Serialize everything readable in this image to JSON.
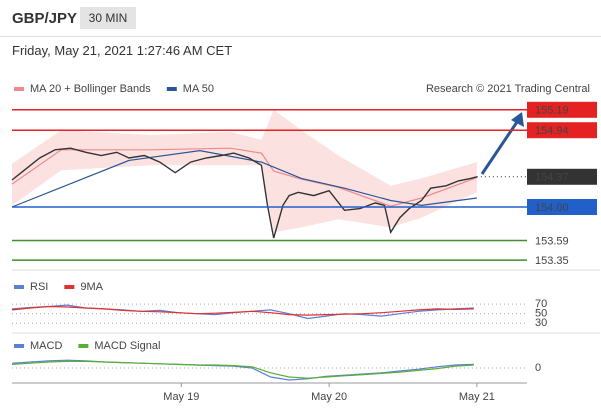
{
  "header": {
    "symbol": "GBP/JPY",
    "interval": "30 MIN",
    "timestamp": "Friday, May 21, 2021 1:27:46 AM CET"
  },
  "chart_data": [
    {
      "type": "line",
      "source": "Research © 2021 Trading Central",
      "xlim": [
        0,
        165
      ],
      "ylim": [
        153.29,
        155.31
      ],
      "x": [
        0,
        4,
        9,
        14,
        19,
        24,
        29,
        34,
        38,
        43,
        48,
        53,
        58,
        63,
        68,
        72,
        77,
        81,
        83,
        85,
        88,
        90,
        93,
        98,
        103,
        108,
        113,
        118,
        121,
        123,
        126,
        129,
        133,
        136,
        141,
        145,
        149,
        151
      ],
      "values": [
        154.33,
        154.45,
        154.6,
        154.7,
        154.72,
        154.67,
        154.63,
        154.67,
        154.6,
        154.63,
        154.55,
        154.42,
        154.55,
        154.6,
        154.63,
        154.66,
        154.6,
        154.51,
        154.02,
        153.62,
        154.02,
        154.14,
        154.18,
        154.14,
        154.2,
        153.96,
        153.98,
        154.05,
        154.02,
        153.69,
        153.87,
        153.98,
        154.08,
        154.23,
        154.26,
        154.32,
        154.35,
        154.37
      ],
      "color": "#333333",
      "series": [
        {
          "name": "MA 20 + Bollinger Bands",
          "color": "#f08a8a",
          "band_color": "#fbd9d9",
          "x": [
            0,
            16,
            45,
            71,
            81,
            85,
            94,
            106,
            123,
            133,
            151
          ],
          "values": [
            154.28,
            154.7,
            154.7,
            154.72,
            154.66,
            154.44,
            154.34,
            154.24,
            154.01,
            154.11,
            154.36
          ],
          "upper": [
            154.53,
            154.94,
            154.88,
            154.92,
            154.82,
            155.19,
            154.94,
            154.63,
            154.26,
            154.35,
            154.55
          ],
          "lower": [
            154.02,
            154.45,
            154.51,
            154.51,
            154.51,
            153.69,
            153.75,
            153.85,
            153.75,
            153.87,
            154.18
          ]
        },
        {
          "name": "MA 50",
          "color": "#2a5599",
          "x": [
            0,
            38,
            61,
            81,
            94,
            108,
            123,
            133,
            151
          ],
          "values": [
            154.0,
            154.57,
            154.69,
            154.55,
            154.35,
            154.23,
            154.08,
            154.02,
            154.11
          ]
        }
      ],
      "levels": [
        {
          "value": 155.19,
          "color": "#e52222",
          "box": true,
          "line": "solid"
        },
        {
          "value": 154.94,
          "color": "#e52222",
          "box": true,
          "line": "solid"
        },
        {
          "value": 154.37,
          "color": "#333333",
          "box": true,
          "line": "dotted"
        },
        {
          "value": 154,
          "label": "154.00",
          "color": "#2060c8",
          "box": true,
          "line": "solid"
        },
        {
          "value": 153.59,
          "color": "#3d8f2a",
          "box": false,
          "line": "solid"
        },
        {
          "value": 153.35,
          "color": "#3d8f2a",
          "box": false,
          "line": "solid"
        }
      ]
    },
    {
      "type": "line",
      "xlim": [
        0,
        165
      ],
      "ylim": [
        20,
        85
      ],
      "yticks": [
        30,
        50,
        70
      ],
      "series": [
        {
          "name": "RSI",
          "color": "#5b7fd6",
          "x": [
            0,
            6,
            12,
            18,
            24,
            30,
            36,
            42,
            48,
            54,
            60,
            66,
            72,
            78,
            84,
            90,
            96,
            102,
            108,
            114,
            120,
            126,
            132,
            138,
            144,
            150
          ],
          "values": [
            60,
            63,
            65,
            68,
            62,
            60,
            58,
            55,
            57,
            52,
            50,
            48,
            52,
            55,
            58,
            50,
            40,
            45,
            50,
            48,
            45,
            50,
            55,
            58,
            60,
            62
          ]
        },
        {
          "name": "9MA",
          "color": "#e03030",
          "x": [
            0,
            6,
            12,
            18,
            24,
            30,
            36,
            42,
            48,
            54,
            60,
            66,
            72,
            78,
            84,
            90,
            96,
            102,
            108,
            114,
            120,
            126,
            132,
            138,
            144,
            150
          ],
          "values": [
            58,
            62,
            65,
            64,
            62,
            60,
            57,
            55,
            54,
            52,
            50,
            51,
            53,
            55,
            52,
            48,
            47,
            48,
            49,
            50,
            52,
            55,
            58,
            60,
            59,
            60
          ]
        }
      ]
    },
    {
      "type": "line",
      "xlim": [
        0,
        165
      ],
      "ylim": [
        -0.3,
        0.3
      ],
      "yticks": [
        0
      ],
      "xticks": [
        {
          "value": 55,
          "label": "May 19"
        },
        {
          "value": 103,
          "label": "May 20"
        },
        {
          "value": 151,
          "label": "May 21"
        }
      ],
      "series": [
        {
          "name": "MACD",
          "color": "#5b7fd6",
          "x": [
            0,
            6,
            12,
            18,
            24,
            30,
            36,
            42,
            48,
            54,
            60,
            66,
            72,
            78,
            84,
            90,
            96,
            102,
            108,
            114,
            120,
            126,
            132,
            138,
            144,
            150
          ],
          "values": [
            0.08,
            0.1,
            0.12,
            0.13,
            0.12,
            0.1,
            0.09,
            0.08,
            0.07,
            0.06,
            0.05,
            0.04,
            0.03,
            0.0,
            -0.15,
            -0.2,
            -0.18,
            -0.14,
            -0.12,
            -0.1,
            -0.08,
            -0.05,
            -0.02,
            0.02,
            0.05,
            0.06
          ]
        },
        {
          "name": "MACD Signal",
          "color": "#58b030",
          "x": [
            0,
            6,
            12,
            18,
            24,
            30,
            36,
            42,
            48,
            54,
            60,
            66,
            72,
            78,
            84,
            90,
            96,
            102,
            108,
            114,
            120,
            126,
            132,
            138,
            144,
            150
          ],
          "values": [
            0.06,
            0.08,
            0.1,
            0.11,
            0.11,
            0.1,
            0.09,
            0.08,
            0.07,
            0.06,
            0.05,
            0.05,
            0.04,
            0.02,
            -0.08,
            -0.15,
            -0.17,
            -0.15,
            -0.13,
            -0.11,
            -0.09,
            -0.07,
            -0.04,
            -0.01,
            0.03,
            0.05
          ]
        }
      ]
    }
  ]
}
